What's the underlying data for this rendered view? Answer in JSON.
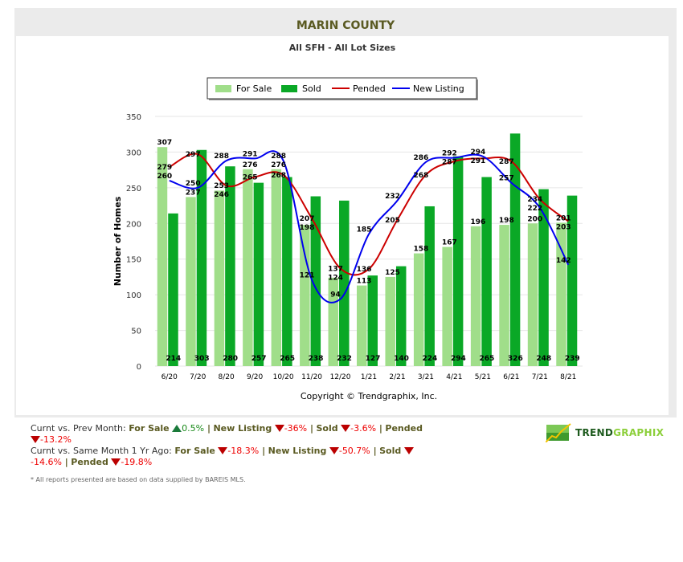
{
  "header": {
    "title": "MARIN COUNTY",
    "subtitle": "All SFH - All Lot Sizes"
  },
  "chart_data": {
    "type": "bar",
    "ylabel": "Number of Homes",
    "xlabel": "",
    "ylim": [
      0,
      350
    ],
    "yticks": [
      0,
      50,
      100,
      150,
      200,
      250,
      300,
      350
    ],
    "grid": true,
    "legend": "top-center",
    "categories": [
      "6/20",
      "7/20",
      "8/20",
      "9/20",
      "10/20",
      "11/20",
      "12/20",
      "1/21",
      "2/21",
      "3/21",
      "4/21",
      "5/21",
      "6/21",
      "7/21",
      "8/21"
    ],
    "series": [
      {
        "name": "For Sale",
        "kind": "bar",
        "color": "#a0de8a",
        "values": [
          307,
          237,
          246,
          276,
          276,
          198,
          124,
          113,
          125,
          158,
          167,
          196,
          198,
          200,
          201
        ]
      },
      {
        "name": "Sold",
        "kind": "bar",
        "color": "#0aa826",
        "values": [
          214,
          303,
          280,
          257,
          265,
          238,
          232,
          127,
          140,
          224,
          294,
          265,
          326,
          248,
          239
        ]
      },
      {
        "name": "Pended",
        "kind": "line",
        "color": "#cc0000",
        "values": [
          279,
          297,
          253,
          265,
          268,
          207,
          137,
          136,
          205,
          268,
          287,
          291,
          287,
          234,
          203
        ]
      },
      {
        "name": "New Listing",
        "kind": "line",
        "color": "#0000ee",
        "values": [
          260,
          250,
          288,
          291,
          288,
          121,
          94,
          185,
          232,
          286,
          292,
          294,
          257,
          222,
          142
        ]
      }
    ],
    "footer": "Copyright © Trendgraphix, Inc."
  },
  "stats": {
    "prev_label": "Curnt vs. Prev Month:",
    "prev": [
      {
        "name": "For Sale",
        "dir": "up",
        "value": "0.5%"
      },
      {
        "name": "New Listing",
        "dir": "down",
        "value": "-36%"
      },
      {
        "name": "Sold",
        "dir": "down",
        "value": "-3.6%"
      },
      {
        "name": "Pended",
        "dir": "down",
        "value": "-13.2%"
      }
    ],
    "year_label": "Curnt vs. Same Month 1 Yr Ago:",
    "year": [
      {
        "name": "For Sale",
        "dir": "down",
        "value": "-18.3%"
      },
      {
        "name": "New Listing",
        "dir": "down",
        "value": "-50.7%"
      },
      {
        "name": "Sold",
        "dir": "down",
        "value": "-14.6%"
      },
      {
        "name": "Pended",
        "dir": "down",
        "value": "-19.8%"
      }
    ]
  },
  "note": "* All reports presented are based on data supplied by BAREIS MLS.",
  "logo": {
    "part1": "TREND",
    "part2": "GRAPHIX"
  }
}
